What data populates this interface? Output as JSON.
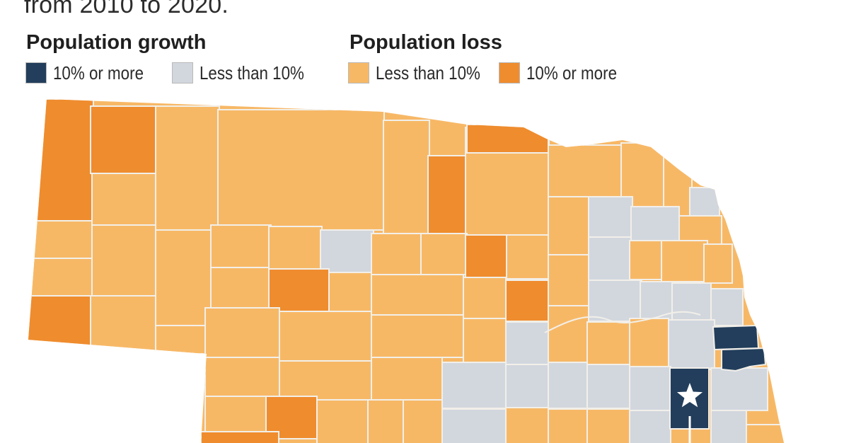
{
  "subtitle": "from 2010 to 2020.",
  "legend": {
    "growth_title": "Population growth",
    "loss_title": "Population loss",
    "items": [
      {
        "label": "10% or more",
        "color": "#223e5c"
      },
      {
        "label": "Less than 10%",
        "color": "#d2d7de"
      },
      {
        "label": "Less than 10%",
        "color": "#f7b866"
      },
      {
        "label": "10% or more",
        "color": "#ef8c2e"
      }
    ]
  },
  "colors": {
    "growth_10_plus": "#223e5c",
    "growth_under_10": "#d2d7de",
    "loss_under_10": "#f7b866",
    "loss_10_plus": "#ef8c2e",
    "county_border": "#f2efe9",
    "star": "#ffffff"
  },
  "map": {
    "marker_icon": "star-icon"
  }
}
